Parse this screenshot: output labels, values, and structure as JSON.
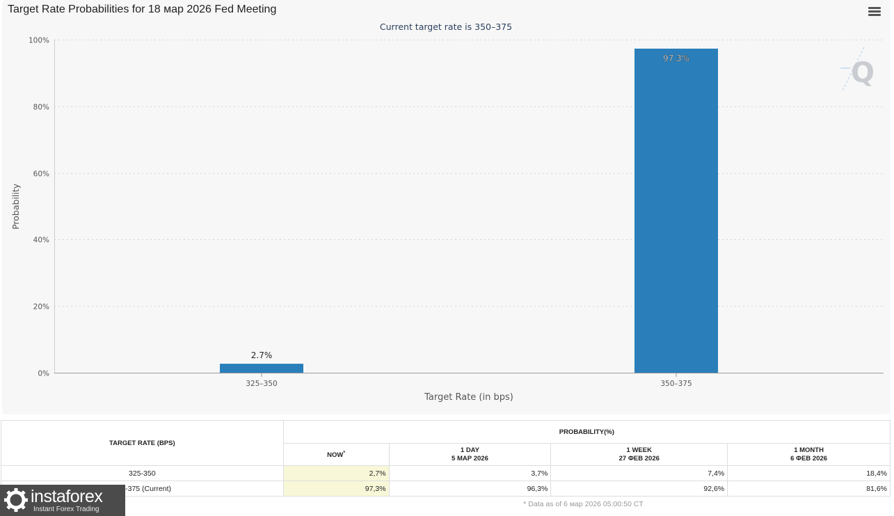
{
  "header": {
    "title": "Target Rate Probabilities for 18 мар 2026 Fed Meeting",
    "menu_icon": "hamburger-menu-icon"
  },
  "chart_data": {
    "type": "bar",
    "subtitle": "Current target rate is 350–375",
    "xlabel": "Target Rate (in bps)",
    "ylabel": "Probability",
    "categories": [
      "325–350",
      "350–375"
    ],
    "values": [
      2.7,
      97.3
    ],
    "data_labels": [
      "2.7%",
      "97.3%"
    ],
    "ylim": [
      0,
      100
    ],
    "yticks": [
      0,
      20,
      40,
      60,
      80,
      100
    ],
    "ytick_labels": [
      "0%",
      "20%",
      "40%",
      "60%",
      "80%",
      "100%"
    ],
    "grid": true,
    "bar_color": "#2a7fba",
    "logo_icon": "q-logo-icon"
  },
  "table": {
    "col_rate_header": "TARGET RATE (BPS)",
    "col_prob_header": "PROBABILITY(%)",
    "columns": [
      {
        "line1": "NOW",
        "line2": "",
        "marker": "*"
      },
      {
        "line1": "1 DAY",
        "line2": "5 МАР 2026",
        "marker": ""
      },
      {
        "line1": "1 WEEK",
        "line2": "27 ФЕВ 2026",
        "marker": ""
      },
      {
        "line1": "1 MONTH",
        "line2": "6 ФЕВ 2026",
        "marker": ""
      }
    ],
    "rows": [
      {
        "rate": "325-350",
        "values": [
          "2,7%",
          "3,7%",
          "7,4%",
          "18,4%"
        ]
      },
      {
        "rate": "350-375 (Current)",
        "values": [
          "97,3%",
          "96,3%",
          "92,6%",
          "81,6%"
        ]
      }
    ],
    "note": "* Data as of 6 мар 2026 05:00:50 CT",
    "now_highlight_color": "#f8f8d8"
  },
  "watermark": {
    "name": "instaforex",
    "tagline": "Instant Forex Trading",
    "icon": "gear-logo-icon"
  }
}
